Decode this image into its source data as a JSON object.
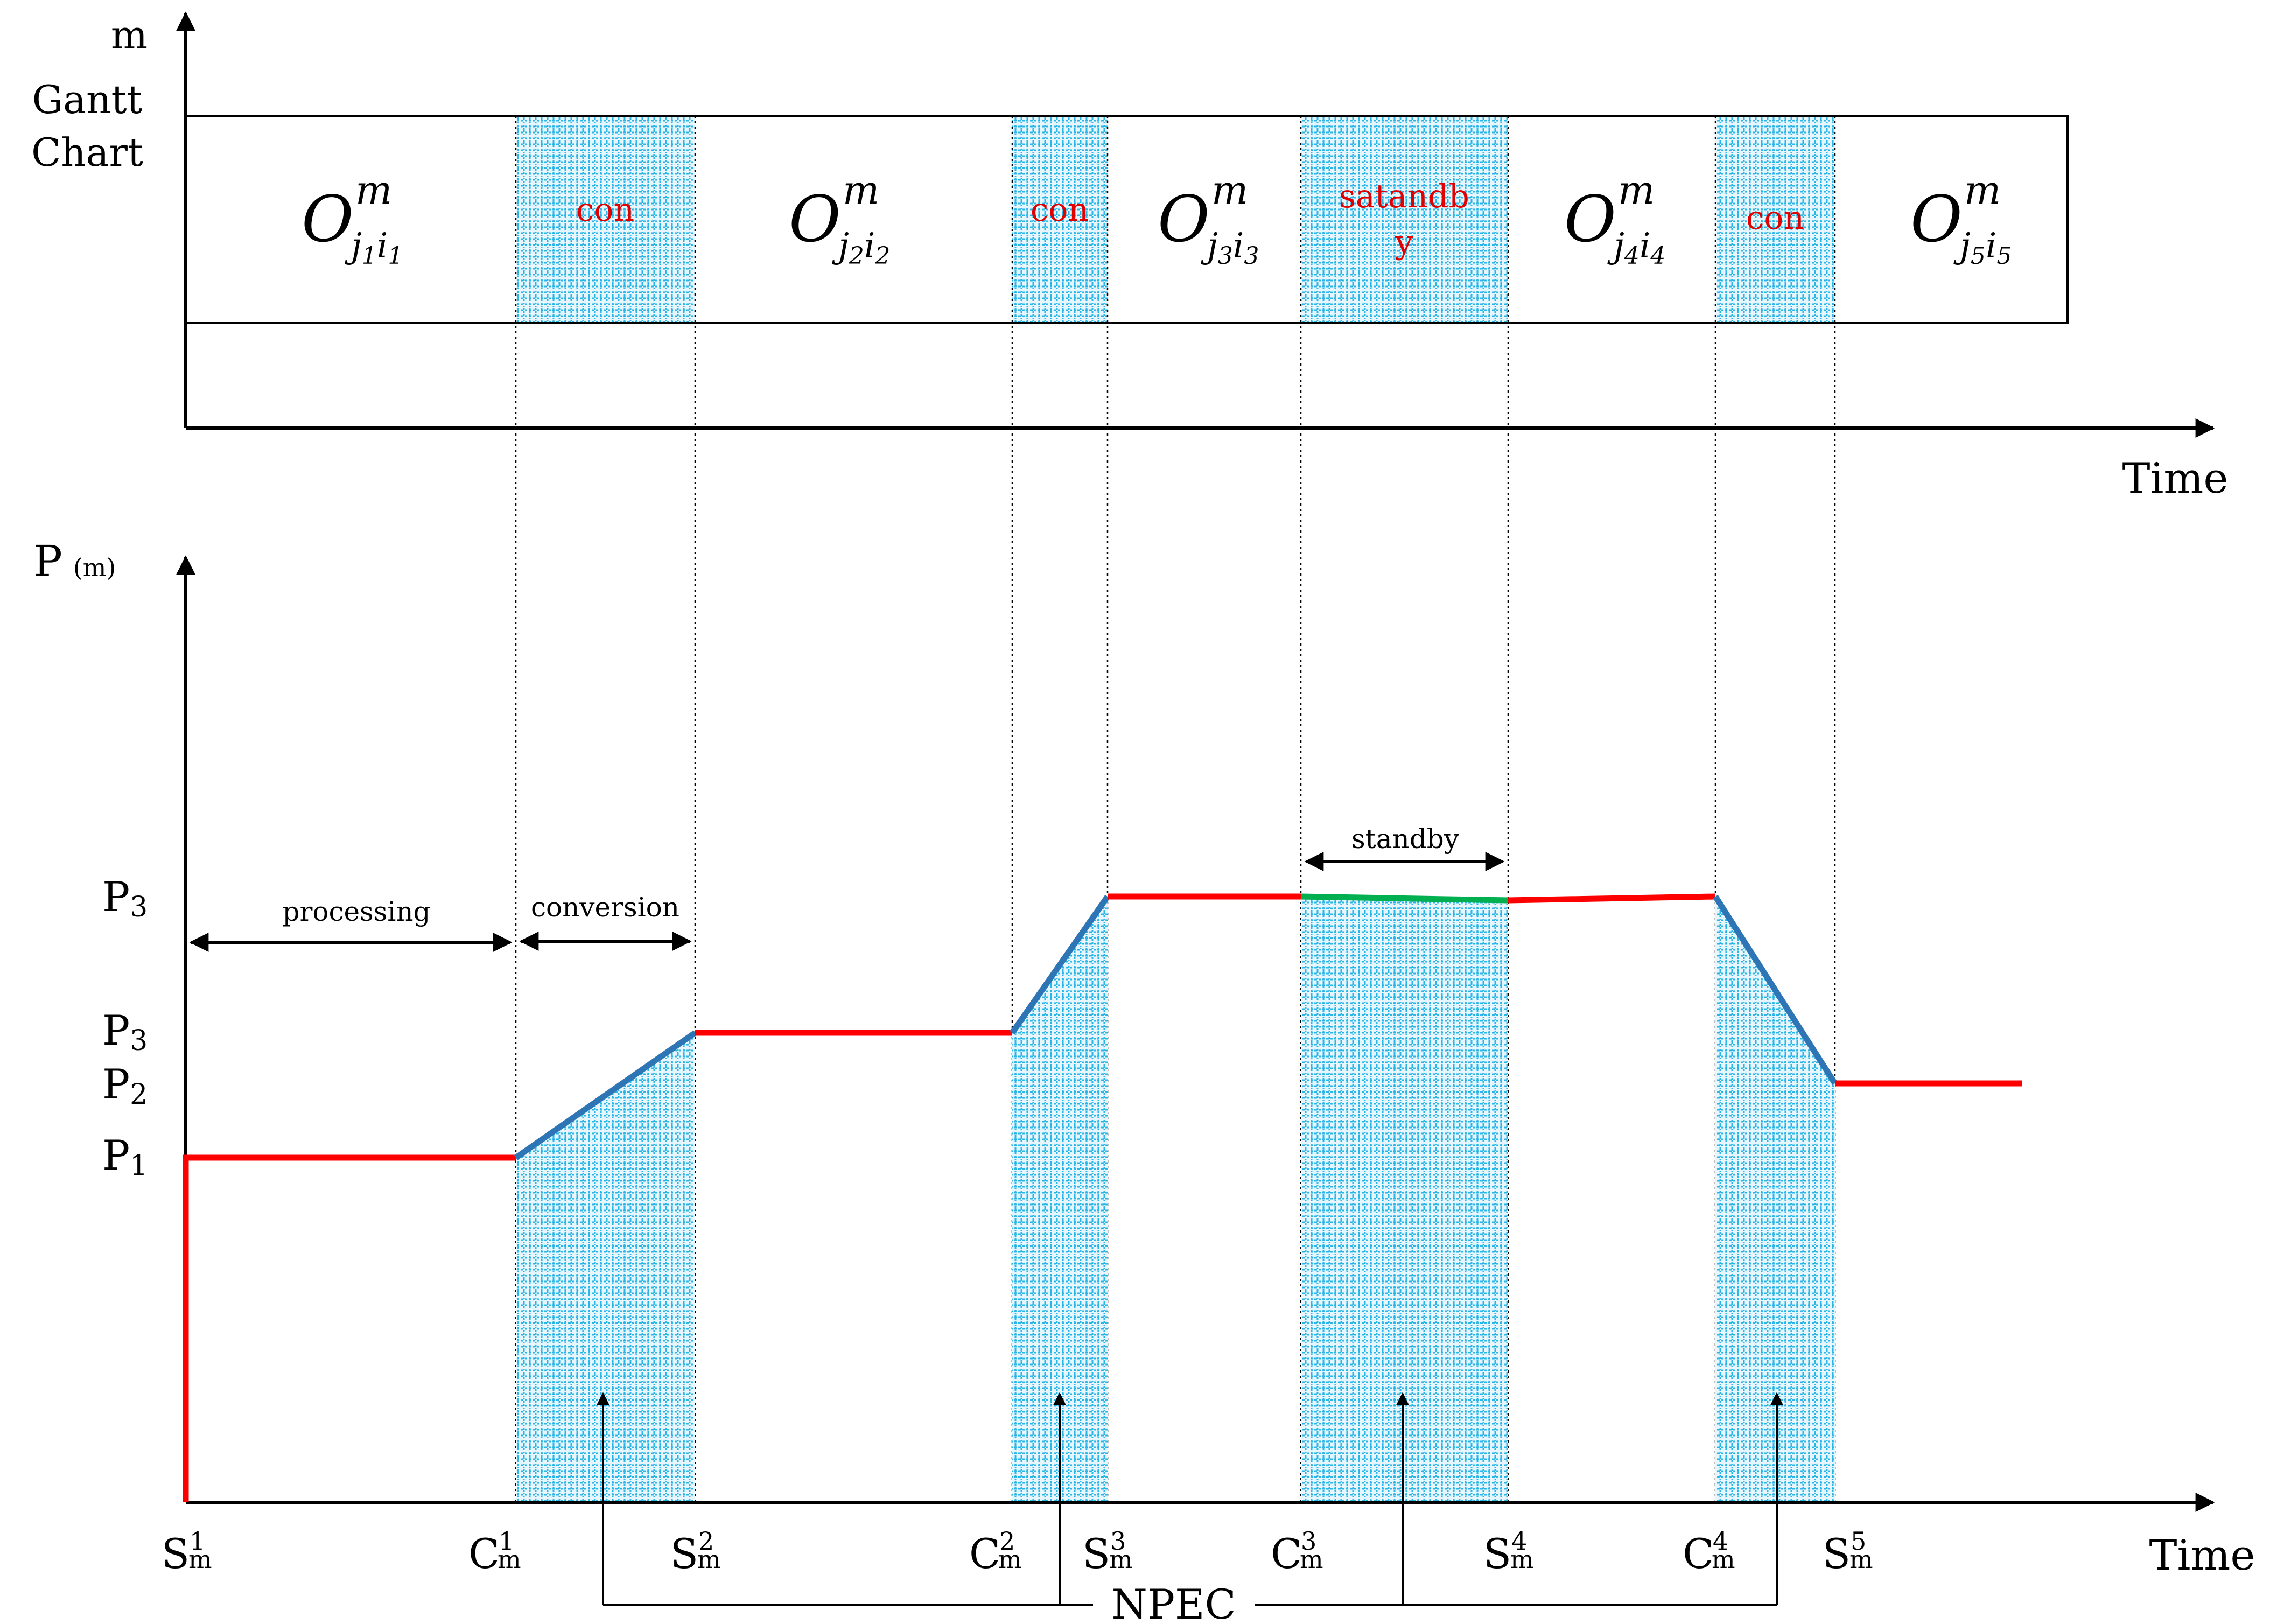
{
  "gantt": {
    "y_axis_label": "m",
    "row_label_line1": "Gantt",
    "row_label_line2": "Chart",
    "x_axis_label": "Time",
    "operation_symbol": "O",
    "operation_superscript": "m",
    "operations": [
      {
        "sub1": "j",
        "idx": "1",
        "sub2": "i",
        "idx2": "1"
      },
      {
        "sub1": "j",
        "idx": "2",
        "sub2": "i",
        "idx2": "2"
      },
      {
        "sub1": "j",
        "idx": "3",
        "sub2": "i",
        "idx2": "3"
      },
      {
        "sub1": "j",
        "idx": "4",
        "sub2": "i",
        "idx2": "4"
      },
      {
        "sub1": "j",
        "idx": "5",
        "sub2": "i",
        "idx2": "5"
      }
    ],
    "hatched_blocks": [
      {
        "line1": "con",
        "line2": ""
      },
      {
        "line1": "con",
        "line2": ""
      },
      {
        "line1": "satandb",
        "line2": "y"
      },
      {
        "line1": "con",
        "line2": ""
      }
    ]
  },
  "power": {
    "y_axis_label": "P",
    "y_axis_sub": "(m)",
    "x_axis_label": "Time",
    "levels": [
      {
        "letter": "P",
        "sub": "3"
      },
      {
        "letter": "P",
        "sub": "3"
      },
      {
        "letter": "P",
        "sub": "2"
      },
      {
        "letter": "P",
        "sub": "1"
      }
    ],
    "intervals": {
      "processing": "processing",
      "conversion": "conversion",
      "standby": "standby"
    },
    "x_ticks": [
      {
        "letter": "S",
        "sup": "1",
        "sub": "m"
      },
      {
        "letter": "C",
        "sup": "1",
        "sub": "m"
      },
      {
        "letter": "S",
        "sup": "2",
        "sub": "m"
      },
      {
        "letter": "C",
        "sup": "2",
        "sub": "m"
      },
      {
        "letter": "S",
        "sup": "3",
        "sub": "m"
      },
      {
        "letter": "C",
        "sup": "3",
        "sub": "m"
      },
      {
        "letter": "S",
        "sup": "4",
        "sub": "m"
      },
      {
        "letter": "C",
        "sup": "4",
        "sub": "m"
      },
      {
        "letter": "S",
        "sup": "5",
        "sub": "m"
      }
    ],
    "npec_label": "NPEC"
  },
  "colors": {
    "processing_line": "#ff0000",
    "transition_line": "#2e75b6",
    "standby_line": "#00b050",
    "hatch": "#29b6e6",
    "red_text": "#e00000"
  }
}
